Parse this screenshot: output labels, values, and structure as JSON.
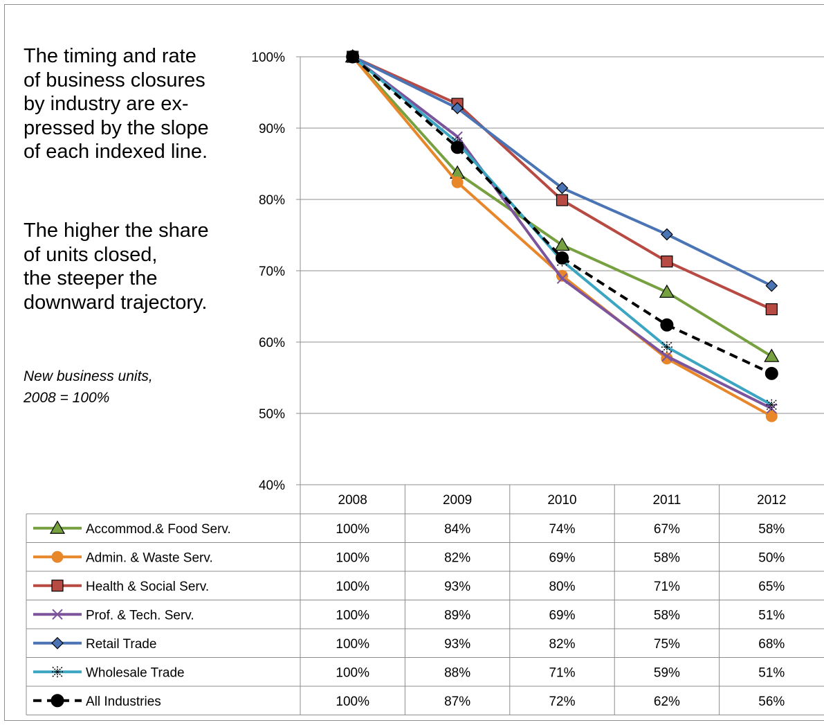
{
  "notes": {
    "paragraph1": [
      "The timing and rate",
      "of business closures",
      "by industry are  ex-",
      "pressed by the slope",
      "of each indexed line."
    ],
    "paragraph2": [
      "The higher the share",
      "of units closed,",
      "the steeper the",
      "downward trajectory."
    ],
    "caption": [
      "New business units,",
      "2008 = 100%"
    ]
  },
  "chart_data": {
    "type": "line",
    "title": "",
    "xlabel": "",
    "ylabel": "",
    "categories": [
      "2008",
      "2009",
      "2010",
      "2011",
      "2012"
    ],
    "ylim": [
      0.4,
      1.0
    ],
    "yticks": [
      {
        "value": 1.0,
        "label": "100%"
      },
      {
        "value": 0.9,
        "label": "90%"
      },
      {
        "value": 0.8,
        "label": "80%"
      },
      {
        "value": 0.7,
        "label": "70%"
      },
      {
        "value": 0.6,
        "label": "60%"
      },
      {
        "value": 0.5,
        "label": "50%"
      },
      {
        "value": 0.4,
        "label": "40%"
      }
    ],
    "grid": true,
    "legend": "data-table-below",
    "series": [
      {
        "name": "Accommod.& Food Serv.",
        "color": "#77a040",
        "marker": "triangle",
        "dashed": false,
        "values": [
          1.0,
          0.837,
          0.736,
          0.67,
          0.58
        ],
        "labels": [
          "100%",
          "84%",
          "74%",
          "67%",
          "58%"
        ]
      },
      {
        "name": "Admin. & Waste Serv.",
        "color": "#e8862a",
        "marker": "circle",
        "dashed": false,
        "values": [
          1.0,
          0.824,
          0.693,
          0.577,
          0.496
        ],
        "labels": [
          "100%",
          "82%",
          "69%",
          "58%",
          "50%"
        ]
      },
      {
        "name": "Health & Social Serv.",
        "color": "#b84a44",
        "marker": "square",
        "dashed": false,
        "values": [
          1.0,
          0.934,
          0.799,
          0.713,
          0.646
        ],
        "labels": [
          "100%",
          "93%",
          "80%",
          "71%",
          "65%"
        ]
      },
      {
        "name": "Prof. & Tech. Serv.",
        "color": "#7b549c",
        "marker": "x",
        "dashed": false,
        "values": [
          1.0,
          0.888,
          0.689,
          0.58,
          0.507
        ],
        "labels": [
          "100%",
          "89%",
          "69%",
          "58%",
          "51%"
        ]
      },
      {
        "name": "Retail Trade",
        "color": "#4a74b4",
        "marker": "diamond",
        "dashed": false,
        "values": [
          1.0,
          0.928,
          0.816,
          0.751,
          0.679
        ],
        "labels": [
          "100%",
          "93%",
          "82%",
          "75%",
          "68%"
        ]
      },
      {
        "name": "Wholesale Trade",
        "color": "#3ba5c2",
        "marker": "star",
        "dashed": false,
        "values": [
          1.0,
          0.88,
          0.714,
          0.593,
          0.512
        ],
        "labels": [
          "100%",
          "88%",
          "71%",
          "59%",
          "51%"
        ]
      },
      {
        "name": "All Industries",
        "color": "#000000",
        "marker": "circle-large",
        "dashed": true,
        "values": [
          1.0,
          0.873,
          0.718,
          0.624,
          0.556
        ],
        "labels": [
          "100%",
          "87%",
          "72%",
          "62%",
          "56%"
        ]
      }
    ]
  },
  "colors": {
    "grid": "#8c8c8c",
    "axis": "#8c8c8c",
    "table_border": "#8c8c8c"
  }
}
